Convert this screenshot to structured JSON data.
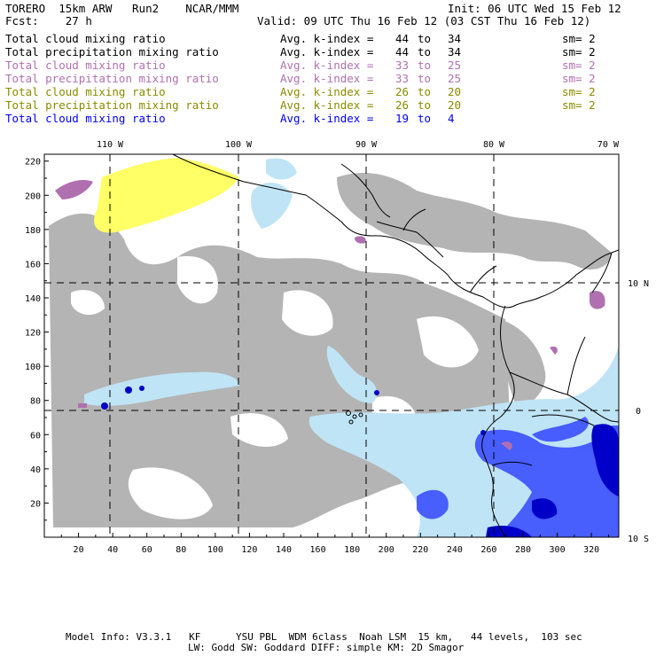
{
  "header": {
    "model": "TORERO",
    "res": "15km ARW",
    "run": "Run2",
    "org": "NCAR/MMM",
    "init": "Init: 06 UTC Wed 15 Feb 12",
    "fcst_label": "Fcst:",
    "fcst_value": "27 h",
    "valid": "Valid: 09 UTC Thu 16 Feb 12 (03 CST Thu 16 Feb 12)"
  },
  "legend": [
    {
      "field": "Total cloud mixing ratio",
      "avg": "Avg. k-index =",
      "a": "44",
      "to": "to",
      "b": "34",
      "sm": "sm= 2",
      "color": "#000000"
    },
    {
      "field": "Total precipitation mixing ratio",
      "avg": "Avg. k-index =",
      "a": "44",
      "to": "to",
      "b": "34",
      "sm": "sm= 2",
      "color": "#000000"
    },
    {
      "field": "Total cloud mixing ratio",
      "avg": "Avg. k-index =",
      "a": "33",
      "to": "to",
      "b": "25",
      "sm": "sm= 2",
      "color": "#b070b0"
    },
    {
      "field": "Total precipitation mixing ratio",
      "avg": "Avg. k-index =",
      "a": "33",
      "to": "to",
      "b": "25",
      "sm": "sm= 2",
      "color": "#b070b0"
    },
    {
      "field": "Total cloud mixing ratio",
      "avg": "Avg. k-index =",
      "a": "26",
      "to": "to",
      "b": "20",
      "sm": "sm= 2",
      "color": "#8a8a00"
    },
    {
      "field": "Total precipitation mixing ratio",
      "avg": "Avg. k-index =",
      "a": "26",
      "to": "to",
      "b": "20",
      "sm": "sm= 2",
      "color": "#8a8a00"
    },
    {
      "field": "Total cloud mixing ratio",
      "avg": "Avg. k-index =",
      "a": "19",
      "to": "to",
      "b": "4",
      "sm": "",
      "color": "#0000ff"
    }
  ],
  "map": {
    "lon_labels": [
      "110 W",
      "100 W",
      "90 W",
      "80 W",
      "70 W"
    ],
    "lat_labels": [
      "10 N",
      "0",
      "10 S"
    ],
    "x_ticks": [
      "20",
      "40",
      "60",
      "80",
      "100",
      "120",
      "140",
      "160",
      "180",
      "200",
      "220",
      "240",
      "260",
      "280",
      "300",
      "320"
    ],
    "y_ticks": [
      "20",
      "40",
      "60",
      "80",
      "100",
      "120",
      "140",
      "160",
      "180",
      "200",
      "220"
    ],
    "colors": {
      "gray": "#b4b4b4",
      "yellow": "#ffff66",
      "purple": "#b070b0",
      "lightblue": "#bfe4f5",
      "blue": "#2a3cff",
      "darkblue": "#0000c8"
    }
  },
  "footer": {
    "line1": "Model Info: V3.3.1   KF      YSU PBL  WDM 6class  Noah LSM  15 km,   44 levels,  103 sec",
    "line2": "LW: Godd SW: Goddard DIFF: simple KM: 2D Smagor"
  }
}
